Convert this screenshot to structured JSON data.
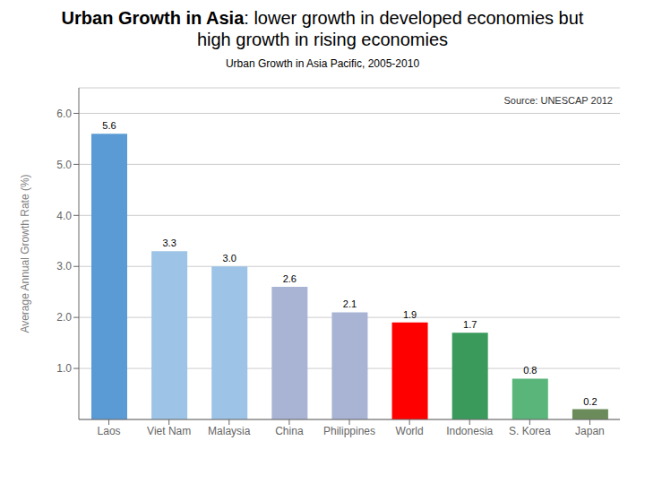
{
  "chart_data": {
    "type": "bar",
    "title": "Urban Growth in Asia: lower growth in developed economies but high growth in rising economies",
    "subtitle": "Urban Growth in Asia Pacific, 2005-2010",
    "ylabel": "Average Annual Growth Rate (%)",
    "annotations": [
      "Source: UNESCAP 2012"
    ],
    "categories": [
      "Laos",
      "Viet Nam",
      "Malaysia",
      "China",
      "Philippines",
      "World",
      "Indonesia",
      "S. Korea",
      "Japan"
    ],
    "values": [
      5.6,
      3.3,
      3.0,
      2.6,
      2.1,
      1.9,
      1.7,
      0.8,
      0.2
    ],
    "value_labels": [
      "5.6",
      "3.3",
      "3.0",
      "2.6",
      "2.1",
      "1.9",
      "1.7",
      "0.8",
      "0.2"
    ],
    "colors": [
      "#5b9bd5",
      "#9dc3e6",
      "#9dc3e6",
      "#a9b4d4",
      "#a9b4d4",
      "#ff0000",
      "#3a9a5c",
      "#5ab57a",
      "#6b8c5a"
    ],
    "ylim": [
      0,
      6.5
    ],
    "yticks": [
      {
        "value": 1.0,
        "label": "1.0"
      },
      {
        "value": 2.0,
        "label": "2.0"
      },
      {
        "value": 3.0,
        "label": "3.0"
      },
      {
        "value": 4.0,
        "label": "4.0"
      },
      {
        "value": 5.0,
        "label": "5.0"
      },
      {
        "value": 6.0,
        "label": "6.0"
      }
    ],
    "grid": true,
    "data_labels": true
  }
}
